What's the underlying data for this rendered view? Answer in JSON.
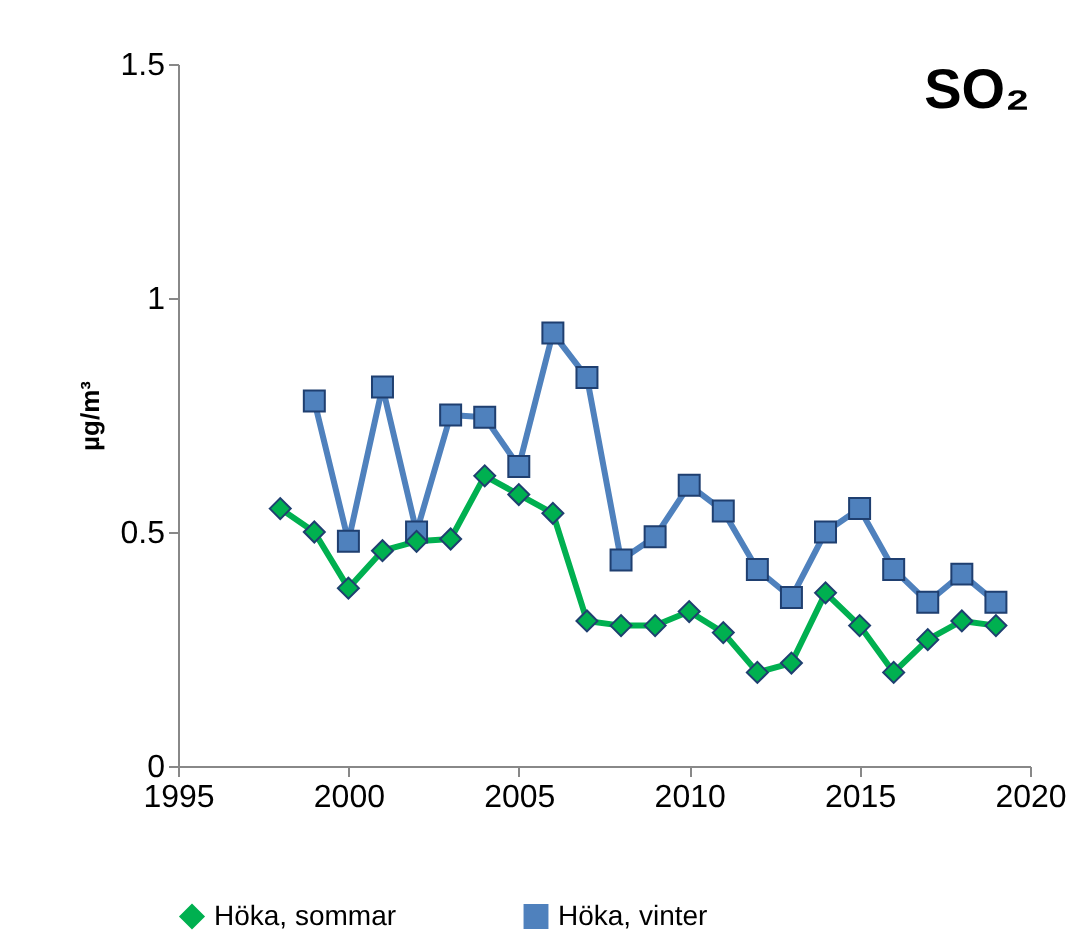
{
  "chart_data": {
    "type": "line",
    "title": "SO₂",
    "ylabel": "µg/m³",
    "xlim": [
      1995,
      2020
    ],
    "xticks": [
      1995,
      2000,
      2005,
      2010,
      2015,
      2020
    ],
    "ylim": [
      0,
      1.5
    ],
    "yticks": [
      0,
      0.5,
      1,
      1.5
    ],
    "grid": false,
    "legend": "bottom",
    "series": [
      {
        "name": "Höka, sommar",
        "color": "#00b050",
        "marker": "diamond",
        "x": [
          1998,
          1999,
          2000,
          2001,
          2002,
          2003,
          2004,
          2005,
          2006,
          2007,
          2008,
          2009,
          2010,
          2011,
          2012,
          2013,
          2014,
          2015,
          2016,
          2017,
          2018,
          2019
        ],
        "values": [
          0.55,
          0.5,
          0.38,
          0.46,
          0.48,
          0.485,
          0.62,
          0.58,
          0.54,
          0.31,
          0.3,
          0.3,
          0.33,
          0.285,
          0.2,
          0.22,
          0.37,
          0.3,
          0.2,
          0.27,
          0.31,
          0.3
        ]
      },
      {
        "name": "Höka, vinter",
        "color": "#4f81bd",
        "marker": "square",
        "x": [
          1999,
          2000,
          2001,
          2002,
          2003,
          2004,
          2005,
          2006,
          2007,
          2008,
          2009,
          2010,
          2011,
          2012,
          2013,
          2014,
          2015,
          2016,
          2017,
          2018,
          2019
        ],
        "values": [
          0.78,
          0.48,
          0.81,
          0.5,
          0.75,
          0.745,
          0.64,
          0.925,
          0.83,
          0.44,
          0.49,
          0.6,
          0.545,
          0.42,
          0.36,
          0.5,
          0.55,
          0.42,
          0.35,
          0.41,
          0.35
        ]
      }
    ]
  }
}
